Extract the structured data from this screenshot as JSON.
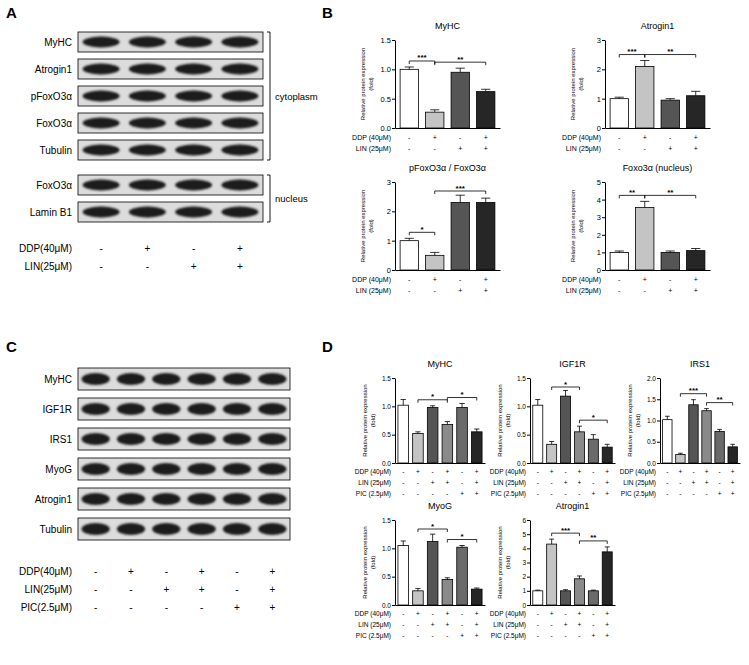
{
  "panel_labels": [
    "A",
    "B",
    "C",
    "D"
  ],
  "blots": [
    {
      "rows": [
        "MyHC",
        "Atrogin1",
        "pFoxO3α",
        "FoxO3α",
        "Tubulin",
        "FoxO3α",
        "Lamin B1"
      ],
      "groups": [
        {
          "label": "cytoplasm",
          "first": 0,
          "last": 4
        },
        {
          "label": "nucleus",
          "first": 5,
          "last": 6
        }
      ],
      "conditions": [
        {
          "label": "DDP(40μM)",
          "signs": [
            "-",
            "+",
            "-",
            "+"
          ]
        },
        {
          "label": "LIN(25μM)",
          "signs": [
            "-",
            "-",
            "+",
            "+"
          ]
        }
      ]
    },
    {
      "rows": [
        "MyHC",
        "IGF1R",
        "IRS1",
        "MyoG",
        "Atrogin1",
        "Tubulin"
      ],
      "groups": [],
      "conditions": [
        {
          "label": "DDP(40μM)",
          "signs": [
            "-",
            "+",
            "-",
            "+",
            "-",
            "+"
          ]
        },
        {
          "label": "LIN(25μM)",
          "signs": [
            "-",
            "-",
            "+",
            "+",
            "-",
            "+"
          ]
        },
        {
          "label": "PIC(2.5μM)",
          "signs": [
            "-",
            "-",
            "-",
            "-",
            "+",
            "+"
          ]
        }
      ]
    }
  ],
  "chart_data": [
    {
      "type": "bar",
      "title": "MyHC",
      "categories": [
        null,
        null,
        null,
        null
      ],
      "values": [
        1.0,
        0.27,
        0.95,
        0.62
      ],
      "errors": [
        0.04,
        0.04,
        0.07,
        0.04
      ],
      "colors": [
        "#ffffff",
        "#c4c4c4",
        "#555555",
        "#262626"
      ],
      "ylabel": [
        "Relative protein expression",
        "(fold)"
      ],
      "ylim": [
        0,
        1.5
      ],
      "yticks": [
        {
          "value": 0,
          "label": "0.0"
        },
        0.5,
        {
          "value": 1,
          "label": "1.0"
        },
        1.5
      ],
      "tick_labels": "y",
      "conditions": [
        {
          "label": "DDP (40μM)",
          "signs": [
            "-",
            "+",
            "-",
            "+"
          ]
        },
        {
          "label": "LIN (25μM)",
          "signs": [
            "-",
            "-",
            "+",
            "+"
          ]
        }
      ],
      "significance": [
        {
          "from": 0,
          "to": 1,
          "label": "***"
        },
        {
          "from": 1,
          "to": 3,
          "label": "**"
        }
      ]
    },
    {
      "type": "bar",
      "title": "Atrogin1",
      "categories": [
        null,
        null,
        null,
        null
      ],
      "values": [
        1.0,
        2.1,
        0.95,
        1.1
      ],
      "errors": [
        0.05,
        0.2,
        0.05,
        0.15
      ],
      "colors": [
        "#ffffff",
        "#c4c4c4",
        "#555555",
        "#262626"
      ],
      "ylabel": [
        "Relative protein expression",
        "(fold)"
      ],
      "ylim": [
        0,
        3
      ],
      "yticks": [
        0,
        1,
        2,
        3
      ],
      "tick_labels": "y",
      "conditions": [
        {
          "label": "DDP (40μM)",
          "signs": [
            "-",
            "+",
            "-",
            "+"
          ]
        },
        {
          "label": "LIN (25μM)",
          "signs": [
            "-",
            "-",
            "+",
            "+"
          ]
        }
      ],
      "significance": [
        {
          "from": 0,
          "to": 1,
          "label": "***"
        },
        {
          "from": 1,
          "to": 3,
          "label": "**"
        }
      ]
    },
    {
      "type": "bar",
      "title": "pFoxO3α / FoxO3α",
      "categories": [
        null,
        null,
        null,
        null
      ],
      "values": [
        1.0,
        0.5,
        2.3,
        2.3
      ],
      "errors": [
        0.08,
        0.1,
        0.25,
        0.15
      ],
      "colors": [
        "#ffffff",
        "#c4c4c4",
        "#555555",
        "#262626"
      ],
      "ylabel": [
        "Relative protein expression",
        "(fold)"
      ],
      "ylim": [
        0,
        3
      ],
      "yticks": [
        0,
        1,
        2,
        3
      ],
      "tick_labels": "y",
      "conditions": [
        {
          "label": "DDP (40μM)",
          "signs": [
            "-",
            "+",
            "-",
            "+"
          ]
        },
        {
          "label": "LIN (25μM)",
          "signs": [
            "-",
            "-",
            "+",
            "+"
          ]
        }
      ],
      "significance": [
        {
          "from": 0,
          "to": 1,
          "label": "*"
        },
        {
          "from": 1,
          "to": 3,
          "label": "***"
        }
      ]
    },
    {
      "type": "bar",
      "title": "Foxo3α (nucleus)",
      "categories": [
        null,
        null,
        null,
        null
      ],
      "values": [
        1.0,
        3.55,
        1.0,
        1.1
      ],
      "errors": [
        0.08,
        0.35,
        0.08,
        0.12
      ],
      "colors": [
        "#ffffff",
        "#c4c4c4",
        "#555555",
        "#262626"
      ],
      "ylabel": [
        "Relative protein expression",
        "(fold)"
      ],
      "ylim": [
        0,
        5
      ],
      "yticks": [
        0,
        1,
        2,
        3,
        4,
        5
      ],
      "tick_labels": "y",
      "conditions": [
        {
          "label": "DDP (40μM)",
          "signs": [
            "-",
            "+",
            "-",
            "+"
          ]
        },
        {
          "label": "LIN (25μM)",
          "signs": [
            "-",
            "-",
            "+",
            "+"
          ]
        }
      ],
      "significance": [
        {
          "from": 0,
          "to": 1,
          "label": "**"
        },
        {
          "from": 1,
          "to": 3,
          "label": "**"
        }
      ]
    },
    {
      "type": "bar",
      "title": "MyHC",
      "categories": [
        null,
        null,
        null,
        null,
        null,
        null
      ],
      "values": [
        1.02,
        0.52,
        0.98,
        0.68,
        0.98,
        0.55
      ],
      "errors": [
        0.1,
        0.03,
        0.03,
        0.05,
        0.07,
        0.05
      ],
      "colors": [
        "#ffffff",
        "#c4c4c4",
        "#555555",
        "#8a8a8a",
        "#6a6a6a",
        "#262626"
      ],
      "ylabel": [
        "Relative protein expression",
        "(fold)"
      ],
      "ylim": [
        0,
        1.5
      ],
      "yticks": [
        {
          "value": 0,
          "label": "0.0"
        },
        0.5,
        {
          "value": 1,
          "label": "1.0"
        },
        1.5
      ],
      "tick_labels": "y",
      "conditions": [
        {
          "label": "DDP (40μM)",
          "signs": [
            "-",
            "+",
            "-",
            "+",
            "-",
            "+"
          ]
        },
        {
          "label": "LIN (25μM)",
          "signs": [
            "-",
            "-",
            "+",
            "+",
            "-",
            "+"
          ]
        },
        {
          "label": "PIC (2.5μM)",
          "signs": [
            "-",
            "-",
            "-",
            "-",
            "+",
            "+"
          ]
        }
      ],
      "significance": [
        {
          "from": 1,
          "to": 3,
          "label": "*"
        },
        {
          "from": 3,
          "to": 5,
          "label": "*"
        }
      ]
    },
    {
      "type": "bar",
      "title": "IGF1R",
      "categories": [
        null,
        null,
        null,
        null,
        null,
        null
      ],
      "values": [
        1.02,
        0.33,
        1.18,
        0.55,
        0.42,
        0.28
      ],
      "errors": [
        0.1,
        0.05,
        0.1,
        0.1,
        0.08,
        0.05
      ],
      "colors": [
        "#ffffff",
        "#c4c4c4",
        "#555555",
        "#8a8a8a",
        "#6a6a6a",
        "#262626"
      ],
      "ylabel": [
        "Relative protein expression",
        "(fold)"
      ],
      "ylim": [
        0,
        1.5
      ],
      "yticks": [
        {
          "value": 0,
          "label": "0.0"
        },
        0.5,
        {
          "value": 1,
          "label": "1.0"
        },
        1.5
      ],
      "tick_labels": "y",
      "conditions": [
        {
          "label": "DDP (40μM)",
          "signs": [
            "-",
            "+",
            "-",
            "+",
            "-",
            "+"
          ]
        },
        {
          "label": "LIN (25μM)",
          "signs": [
            "-",
            "-",
            "+",
            "+",
            "-",
            "+"
          ]
        },
        {
          "label": "PIC (2.5μM)",
          "signs": [
            "-",
            "-",
            "-",
            "-",
            "+",
            "+"
          ]
        }
      ],
      "significance": [
        {
          "from": 1,
          "to": 3,
          "label": "*"
        },
        {
          "from": 3,
          "to": 5,
          "label": "*"
        }
      ]
    },
    {
      "type": "bar",
      "title": "IRS1",
      "categories": [
        null,
        null,
        null,
        null,
        null,
        null
      ],
      "values": [
        1.02,
        0.2,
        1.37,
        1.23,
        0.74,
        0.38
      ],
      "errors": [
        0.08,
        0.03,
        0.12,
        0.05,
        0.05,
        0.06
      ],
      "colors": [
        "#ffffff",
        "#c4c4c4",
        "#555555",
        "#8a8a8a",
        "#6a6a6a",
        "#262626"
      ],
      "ylabel": [
        "Relative protein expression",
        "(fold)"
      ],
      "ylim": [
        0,
        2
      ],
      "yticks": [
        {
          "value": 0,
          "label": "0.0"
        },
        0.5,
        {
          "value": 1,
          "label": "1.0"
        },
        1.5,
        {
          "value": 2,
          "label": "2.0"
        }
      ],
      "tick_labels": "y",
      "conditions": [
        {
          "label": "DDP (40μM)",
          "signs": [
            "-",
            "+",
            "-",
            "+",
            "-",
            "+"
          ]
        },
        {
          "label": "LIN (25μM)",
          "signs": [
            "-",
            "-",
            "+",
            "+",
            "-",
            "+"
          ]
        },
        {
          "label": "PIC (2.5μM)",
          "signs": [
            "-",
            "-",
            "-",
            "-",
            "+",
            "+"
          ]
        }
      ],
      "significance": [
        {
          "from": 1,
          "to": 3,
          "label": "***"
        },
        {
          "from": 3,
          "to": 5,
          "label": "**"
        }
      ]
    },
    {
      "type": "bar",
      "title": "MyoG",
      "categories": [
        null,
        null,
        null,
        null,
        null,
        null
      ],
      "values": [
        1.05,
        0.25,
        1.12,
        0.45,
        1.02,
        0.28
      ],
      "errors": [
        0.08,
        0.04,
        0.13,
        0.03,
        0.03,
        0.02
      ],
      "colors": [
        "#ffffff",
        "#c4c4c4",
        "#555555",
        "#8a8a8a",
        "#6a6a6a",
        "#262626"
      ],
      "ylabel": [
        "Relative protein expression",
        "(fold)"
      ],
      "ylim": [
        0,
        1.5
      ],
      "yticks": [
        {
          "value": 0,
          "label": "0.0"
        },
        0.5,
        {
          "value": 1,
          "label": "1.0"
        },
        1.5
      ],
      "tick_labels": "y",
      "conditions": [
        {
          "label": "DDP (40μM)",
          "signs": [
            "-",
            "+",
            "-",
            "+",
            "-",
            "+"
          ]
        },
        {
          "label": "LIN (25μM)",
          "signs": [
            "-",
            "-",
            "+",
            "+",
            "-",
            "+"
          ]
        },
        {
          "label": "PIC (2.5μM)",
          "signs": [
            "-",
            "-",
            "-",
            "-",
            "+",
            "+"
          ]
        }
      ],
      "significance": [
        {
          "from": 1,
          "to": 3,
          "label": "*"
        },
        {
          "from": 3,
          "to": 5,
          "label": "*"
        }
      ]
    },
    {
      "type": "bar",
      "title": "Atrogin1",
      "categories": [
        null,
        null,
        null,
        null,
        null,
        null
      ],
      "values": [
        1.0,
        4.3,
        1.0,
        1.85,
        1.0,
        3.75
      ],
      "errors": [
        0.05,
        0.35,
        0.08,
        0.2,
        0.05,
        0.35
      ],
      "colors": [
        "#ffffff",
        "#c4c4c4",
        "#555555",
        "#8a8a8a",
        "#6a6a6a",
        "#262626"
      ],
      "ylabel": [
        "Relative protein expression",
        "(fold)"
      ],
      "ylim": [
        0,
        6
      ],
      "yticks": [
        0,
        1,
        2,
        3,
        4,
        5,
        6
      ],
      "tick_labels": "y",
      "conditions": [
        {
          "label": "DDP (40μM)",
          "signs": [
            "-",
            "+",
            "-",
            "+",
            "-",
            "+"
          ]
        },
        {
          "label": "LIN (25μM)",
          "signs": [
            "-",
            "-",
            "+",
            "+",
            "-",
            "+"
          ]
        },
        {
          "label": "PIC (2.5μM)",
          "signs": [
            "-",
            "-",
            "-",
            "-",
            "+",
            "+"
          ]
        }
      ],
      "significance": [
        {
          "from": 1,
          "to": 3,
          "label": "***"
        },
        {
          "from": 3,
          "to": 5,
          "label": "**"
        }
      ]
    }
  ]
}
